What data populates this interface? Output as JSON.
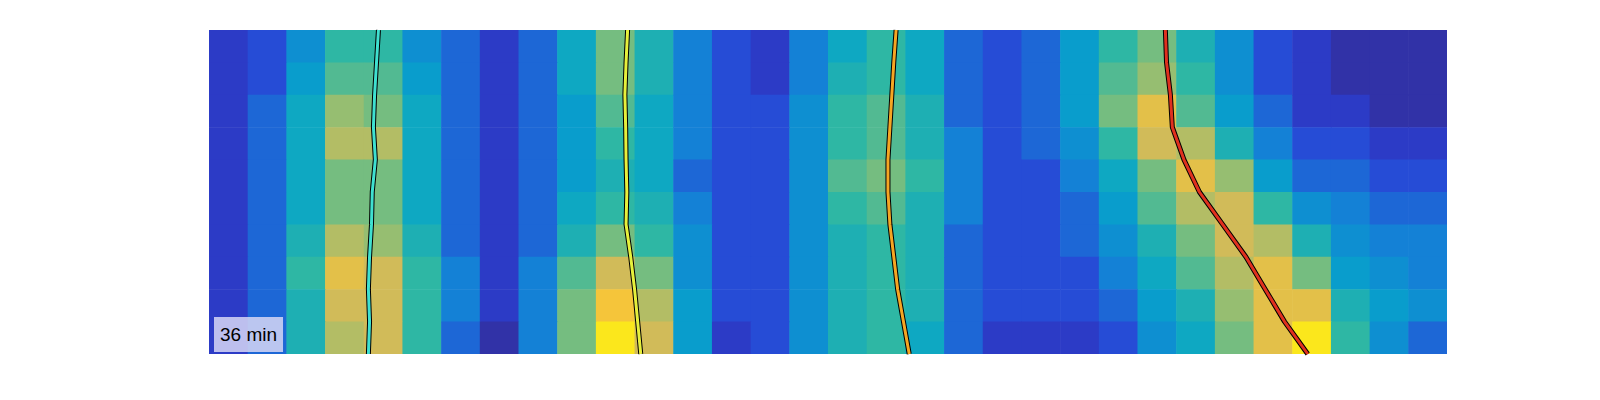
{
  "chart_data": {
    "type": "heatmap",
    "xlim": [
      0,
      32
    ],
    "ylim": [
      0,
      10
    ],
    "tick_labels": false,
    "color_range": [
      0,
      1
    ],
    "cells": [
      [
        0.1,
        0.15,
        0.3,
        0.5,
        0.5,
        0.3,
        0.2,
        0.1,
        0.2,
        0.4,
        0.6,
        0.45,
        0.25,
        0.15,
        0.1,
        0.25,
        0.4,
        0.5,
        0.4,
        0.2,
        0.15,
        0.2,
        0.35,
        0.5,
        0.6,
        0.45,
        0.3,
        0.15,
        0.1,
        0.05,
        0.05,
        0.05
      ],
      [
        0.1,
        0.15,
        0.35,
        0.55,
        0.55,
        0.35,
        0.2,
        0.1,
        0.2,
        0.4,
        0.6,
        0.45,
        0.25,
        0.15,
        0.1,
        0.25,
        0.45,
        0.5,
        0.4,
        0.2,
        0.15,
        0.2,
        0.35,
        0.55,
        0.65,
        0.5,
        0.3,
        0.15,
        0.1,
        0.05,
        0.05,
        0.05
      ],
      [
        0.1,
        0.2,
        0.4,
        0.65,
        0.6,
        0.4,
        0.2,
        0.1,
        0.2,
        0.35,
        0.55,
        0.4,
        0.25,
        0.15,
        0.15,
        0.3,
        0.5,
        0.55,
        0.45,
        0.2,
        0.15,
        0.2,
        0.35,
        0.6,
        0.8,
        0.55,
        0.35,
        0.2,
        0.1,
        0.1,
        0.05,
        0.05
      ],
      [
        0.1,
        0.2,
        0.4,
        0.7,
        0.7,
        0.4,
        0.2,
        0.1,
        0.2,
        0.35,
        0.5,
        0.4,
        0.25,
        0.15,
        0.15,
        0.3,
        0.5,
        0.55,
        0.45,
        0.25,
        0.15,
        0.2,
        0.3,
        0.5,
        0.75,
        0.7,
        0.45,
        0.25,
        0.15,
        0.15,
        0.1,
        0.1
      ],
      [
        0.1,
        0.2,
        0.4,
        0.6,
        0.6,
        0.4,
        0.2,
        0.1,
        0.2,
        0.35,
        0.45,
        0.4,
        0.2,
        0.15,
        0.15,
        0.3,
        0.55,
        0.6,
        0.5,
        0.25,
        0.15,
        0.15,
        0.25,
        0.4,
        0.6,
        0.8,
        0.65,
        0.35,
        0.2,
        0.2,
        0.15,
        0.15
      ],
      [
        0.1,
        0.2,
        0.4,
        0.6,
        0.6,
        0.4,
        0.2,
        0.1,
        0.2,
        0.4,
        0.5,
        0.45,
        0.25,
        0.15,
        0.15,
        0.3,
        0.5,
        0.55,
        0.45,
        0.25,
        0.15,
        0.15,
        0.2,
        0.35,
        0.55,
        0.7,
        0.75,
        0.5,
        0.3,
        0.25,
        0.2,
        0.2
      ],
      [
        0.1,
        0.2,
        0.45,
        0.7,
        0.65,
        0.45,
        0.2,
        0.1,
        0.2,
        0.45,
        0.6,
        0.5,
        0.3,
        0.15,
        0.15,
        0.3,
        0.45,
        0.5,
        0.45,
        0.2,
        0.15,
        0.15,
        0.2,
        0.3,
        0.45,
        0.6,
        0.75,
        0.7,
        0.45,
        0.3,
        0.25,
        0.25
      ],
      [
        0.1,
        0.2,
        0.5,
        0.8,
        0.75,
        0.5,
        0.25,
        0.1,
        0.25,
        0.55,
        0.75,
        0.6,
        0.3,
        0.15,
        0.15,
        0.3,
        0.45,
        0.5,
        0.45,
        0.2,
        0.15,
        0.15,
        0.15,
        0.25,
        0.4,
        0.55,
        0.7,
        0.8,
        0.6,
        0.35,
        0.3,
        0.25
      ],
      [
        0.1,
        0.2,
        0.45,
        0.75,
        0.75,
        0.5,
        0.25,
        0.1,
        0.25,
        0.6,
        0.85,
        0.7,
        0.35,
        0.15,
        0.15,
        0.3,
        0.45,
        0.5,
        0.45,
        0.2,
        0.15,
        0.15,
        0.15,
        0.2,
        0.35,
        0.45,
        0.65,
        0.8,
        0.8,
        0.45,
        0.35,
        0.3
      ],
      [
        0.1,
        0.2,
        0.45,
        0.7,
        0.75,
        0.5,
        0.2,
        0.05,
        0.25,
        0.6,
        0.95,
        0.75,
        0.35,
        0.1,
        0.15,
        0.3,
        0.45,
        0.5,
        0.4,
        0.2,
        0.1,
        0.1,
        0.1,
        0.15,
        0.3,
        0.4,
        0.6,
        0.8,
        0.95,
        0.5,
        0.3,
        0.2
      ]
    ],
    "series": [
      {
        "type": "line",
        "color": "#3fe0d0",
        "x": [
          4.38,
          4.33,
          4.28,
          4.25,
          4.3,
          4.22,
          4.2,
          4.15,
          4.12,
          4.15,
          4.12
        ],
        "y": [
          0,
          1,
          2,
          3,
          4,
          5,
          6,
          7,
          8,
          9,
          10
        ]
      },
      {
        "type": "line",
        "color": "#e6f03c",
        "x": [
          10.82,
          10.78,
          10.75,
          10.77,
          10.78,
          10.8,
          10.78,
          10.9,
          11.0,
          11.08,
          11.16
        ],
        "y": [
          0,
          1,
          2,
          3,
          4,
          5,
          6,
          7,
          8,
          9,
          10
        ]
      },
      {
        "type": "line",
        "color": "#f5a623",
        "x": [
          17.76,
          17.7,
          17.65,
          17.6,
          17.55,
          17.55,
          17.6,
          17.7,
          17.8,
          17.95,
          18.1
        ],
        "y": [
          0,
          1,
          2,
          3,
          4,
          5,
          6,
          7,
          8,
          9,
          10
        ]
      },
      {
        "type": "line",
        "color": "#e0301e",
        "x": [
          24.72,
          24.75,
          24.85,
          24.9,
          25.2,
          25.6,
          26.2,
          26.8,
          27.3,
          27.8,
          28.4
        ],
        "y": [
          0,
          1,
          2,
          3,
          4,
          5,
          6,
          7,
          8,
          9,
          10
        ]
      }
    ],
    "annotations": [
      "36 min"
    ]
  }
}
